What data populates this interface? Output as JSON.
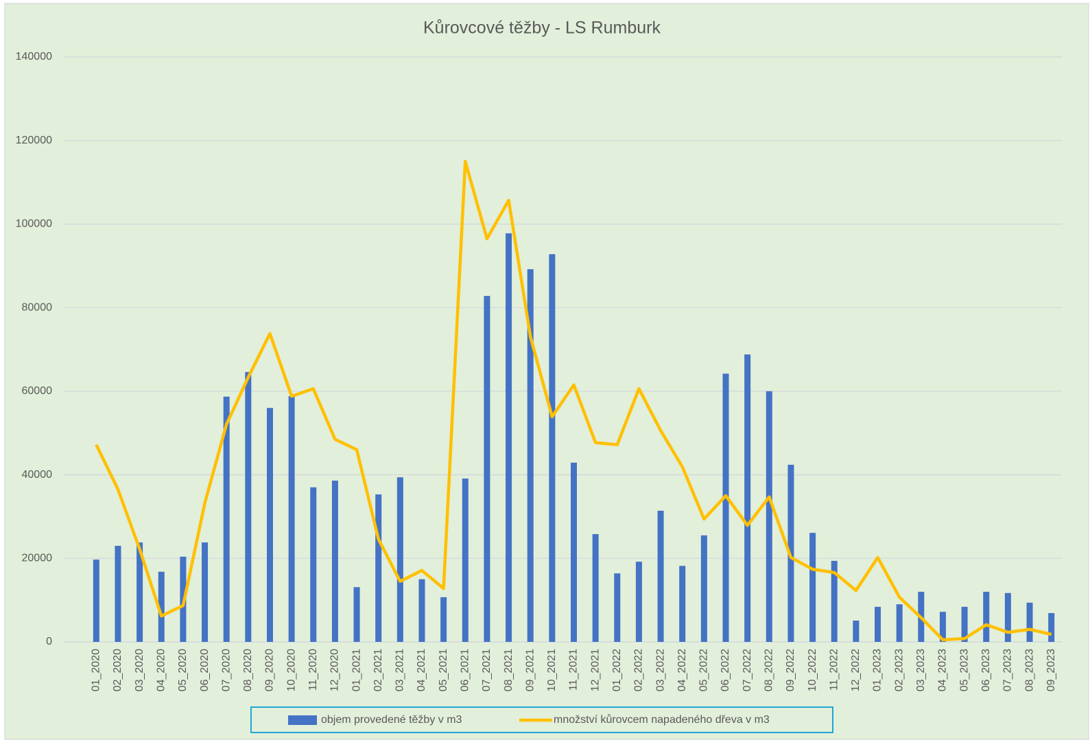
{
  "chart_data": {
    "type": "bar",
    "title": "Kůrovcové těžby - LS Rumburk",
    "categories": [
      "01_2020",
      "02_2020",
      "03_2020",
      "04_2020",
      "05_2020",
      "06_2020",
      "07_2020",
      "08_2020",
      "09_2020",
      "10_2020",
      "11_2020",
      "12_2020",
      "01_2021",
      "02_2021",
      "03_2021",
      "04_2021",
      "05_2021",
      "06_2021",
      "07_2021",
      "08_2021",
      "09_2021",
      "10_2021",
      "11_2021",
      "12_2021",
      "01_2022",
      "02_2022",
      "03_2022",
      "04_2022",
      "05_2022",
      "06_2022",
      "07_2022",
      "08_2022",
      "09_2022",
      "10_2022",
      "11_2022",
      "12_2022",
      "01_2023",
      "02_2023",
      "03_2023",
      "04_2023",
      "05_2023",
      "06_2023",
      "07_2023",
      "08_2023",
      "09_2023"
    ],
    "series": [
      {
        "name": "objem provedené těžby v m3",
        "type": "bar",
        "color": "#4472c4",
        "values": [
          19700,
          23000,
          23800,
          16800,
          20400,
          23800,
          58700,
          64600,
          56000,
          58800,
          37000,
          38600,
          13100,
          35300,
          39400,
          15000,
          10700,
          39100,
          82800,
          97800,
          89200,
          92800,
          42900,
          25800,
          16400,
          19200,
          31400,
          18200,
          25500,
          64200,
          68800,
          60000,
          42400,
          26100,
          19400,
          5100,
          8400,
          9000,
          12000,
          7200,
          8400,
          12000,
          11700,
          9400,
          6900
        ]
      },
      {
        "name": "množství kůrovcem napadeného dřeva v m3",
        "type": "line",
        "color": "#ffc000",
        "values": [
          47200,
          36500,
          22200,
          6200,
          8700,
          33200,
          52100,
          63300,
          73800,
          58800,
          60600,
          48500,
          46000,
          24600,
          14500,
          17100,
          12800,
          115000,
          96500,
          105700,
          73100,
          53900,
          61500,
          47700,
          47200,
          60600,
          50600,
          41900,
          29400,
          35000,
          27900,
          34700,
          20200,
          17400,
          16600,
          12300,
          20200,
          10700,
          5800,
          500,
          800,
          4100,
          2300,
          3000,
          1800
        ]
      }
    ],
    "ylim": [
      0,
      140000
    ],
    "yticks": [
      0,
      20000,
      40000,
      60000,
      80000,
      100000,
      120000,
      140000
    ],
    "grid": true,
    "legend": "bottom"
  }
}
